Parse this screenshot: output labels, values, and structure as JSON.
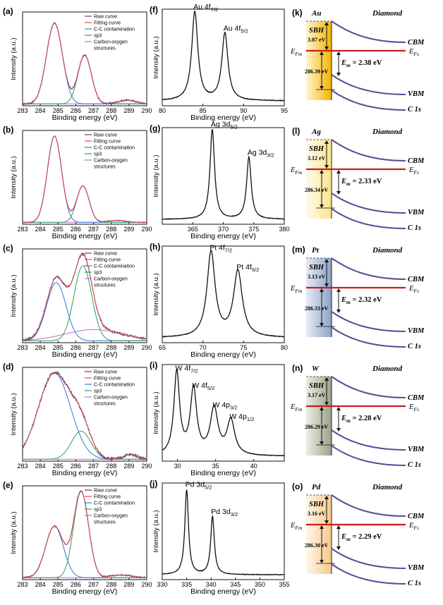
{
  "xps_c1s": [
    {
      "label": "(a)",
      "legend": [
        "Raw curve",
        "Fitting curve",
        "C-C contamination",
        "sp3",
        "Carbon-oxygen",
        "structures"
      ],
      "xlabel": "Binding energy (eV)",
      "ylabel": "Intensity (a.u.)",
      "ticks": [
        "283",
        "284",
        "285",
        "286",
        "287",
        "288",
        "289",
        "290"
      ],
      "peaks": [
        {
          "name": "C-C contamination",
          "center": 284.8,
          "height": 0.86,
          "width": 0.45
        },
        {
          "name": "sp3",
          "center": 286.5,
          "height": 0.52,
          "width": 0.38
        }
      ],
      "bg": [
        {
          "center": 288.9,
          "height": 0.04,
          "width": 0.5
        }
      ],
      "raw_scale": 1.0,
      "noise": 0.6
    },
    {
      "label": "(b)",
      "legend": [
        "Raw curve",
        "Fitting curve",
        "C-C contamination",
        "sp3",
        "Carbon-oxygen",
        "structures"
      ],
      "xlabel": "Binding energy (eV)",
      "ylabel": "Intensity (a.u.)",
      "ticks": [
        "283",
        "284",
        "285",
        "286",
        "287",
        "288",
        "289",
        "290"
      ],
      "peaks": [
        {
          "name": "C-C contamination",
          "center": 284.8,
          "height": 0.92,
          "width": 0.4
        },
        {
          "name": "sp3",
          "center": 286.4,
          "height": 0.39,
          "width": 0.35
        }
      ],
      "bg": [
        {
          "center": 288.3,
          "height": 0.02,
          "width": 0.5
        }
      ],
      "raw_scale": 1.0,
      "noise": 0.3
    },
    {
      "label": "(c)",
      "legend": [
        "Raw curve",
        "Fitting curve",
        "C-C contamination",
        "sp3",
        "Carbon-oxygen",
        "structures"
      ],
      "xlabel": "Binding energy (eV)",
      "ylabel": "Intensity (a.u.)",
      "ticks": [
        "283",
        "284",
        "285",
        "286",
        "287",
        "288",
        "289",
        "290"
      ],
      "peaks": [
        {
          "name": "C-C contamination",
          "center": 284.9,
          "height": 0.62,
          "width": 0.55
        },
        {
          "name": "sp3",
          "center": 286.4,
          "height": 0.8,
          "width": 0.5
        }
      ],
      "bg": [
        {
          "center": 287.0,
          "height": 0.12,
          "width": 1.6
        }
      ],
      "raw_scale": 1.0,
      "noise": 0.8
    },
    {
      "label": "(d)",
      "legend": [
        "Raw curve",
        "Fitting curve",
        "C-C contamination",
        "sp3",
        "Carbon-oxygen",
        "structures"
      ],
      "xlabel": "Binding energy (eV)",
      "ylabel": "Intensity (a.u.)",
      "ticks": [
        "283",
        "284",
        "285",
        "286",
        "287",
        "288",
        "289",
        "290"
      ],
      "peaks": [
        {
          "name": "C-C contamination",
          "center": 284.8,
          "height": 0.92,
          "width": 0.9
        },
        {
          "name": "sp3",
          "center": 286.3,
          "height": 0.3,
          "width": 0.55
        }
      ],
      "bg": [
        {
          "center": 289.1,
          "height": 0.05,
          "width": 0.4
        }
      ],
      "raw_scale": 1.0,
      "noise": 1.0
    },
    {
      "label": "(e)",
      "legend": [
        "Raw curve",
        "Fitting curve",
        "C-C contamination",
        "sp3",
        "Carbon-oxygen",
        "structures"
      ],
      "xlabel": "Binding energy (eV)",
      "ylabel": "Intensity (a.u.)",
      "ticks": [
        "283",
        "284",
        "285",
        "286",
        "287",
        "288",
        "289",
        "290"
      ],
      "peaks": [
        {
          "name": "C-C contamination",
          "center": 284.8,
          "height": 0.55,
          "width": 0.5
        },
        {
          "name": "sp3",
          "center": 286.3,
          "height": 0.92,
          "width": 0.42
        }
      ],
      "bg": [
        {
          "center": 288.6,
          "height": 0.03,
          "width": 0.6
        }
      ],
      "raw_scale": 1.0,
      "noise": 0.5
    }
  ],
  "metal_spectra": [
    {
      "label": "(f)",
      "xlabel": "Binding energy (eV)",
      "ylabel": "Intensity (a.u.)",
      "xlim": [
        80,
        95
      ],
      "ticks": [
        "80",
        "85",
        "90",
        "95"
      ],
      "peaks": [
        {
          "center": 84.0,
          "height": 0.92,
          "width": 0.45,
          "label_main": "Au 4f",
          "label_sub": "7/2"
        },
        {
          "center": 87.7,
          "height": 0.7,
          "width": 0.45,
          "label_main": "Au 4f",
          "label_sub": "5/2"
        }
      ]
    },
    {
      "label": "(g)",
      "xlabel": "Binding energy (eV)",
      "ylabel": "Intensity (a.u.)",
      "xlim": [
        360,
        380
      ],
      "ticks": [
        "365",
        "370",
        "375",
        "380"
      ],
      "peaks": [
        {
          "center": 368.2,
          "height": 0.93,
          "width": 0.45,
          "label_main": "Ag 3d",
          "label_sub": "5/2"
        },
        {
          "center": 374.2,
          "height": 0.64,
          "width": 0.45,
          "label_main": "Ag 3d",
          "label_sub": "3/2"
        }
      ]
    },
    {
      "label": "(h)",
      "xlabel": "Binding energy (eV)",
      "ylabel": "Intensity (a.u.)",
      "xlim": [
        65,
        80
      ],
      "ticks": [
        "65",
        "70",
        "75",
        "80"
      ],
      "peaks": [
        {
          "center": 71.0,
          "height": 0.88,
          "width": 0.6,
          "label_main": "Pt 4f",
          "label_sub": "7/2"
        },
        {
          "center": 74.3,
          "height": 0.68,
          "width": 0.65,
          "label_main": "Pt 4f",
          "label_sub": "5/2"
        }
      ]
    },
    {
      "label": "(i)",
      "xlabel": "Binding energy (eV)",
      "ylabel": "Intensity (a.u.)",
      "xlim": [
        28,
        44
      ],
      "ticks": [
        "30",
        "35",
        "40"
      ],
      "peaks": [
        {
          "center": 29.9,
          "height": 0.86,
          "width": 0.45,
          "label_main": "W 4f",
          "label_sub": "7/2"
        },
        {
          "center": 32.1,
          "height": 0.68,
          "width": 0.5,
          "label_main": "W 4f",
          "label_sub": "5/2"
        },
        {
          "center": 34.8,
          "height": 0.48,
          "width": 0.6,
          "label_main": "W 4p",
          "label_sub": "3/2"
        },
        {
          "center": 37.0,
          "height": 0.36,
          "width": 0.6,
          "label_main": "W 4p",
          "label_sub": "1/2"
        }
      ]
    },
    {
      "label": "(j)",
      "xlabel": "Binding energy (eV)",
      "ylabel": "Intensity (a.u.)",
      "xlim": [
        330,
        355
      ],
      "ticks": [
        "330",
        "335",
        "340",
        "345",
        "350",
        "355"
      ],
      "peaks": [
        {
          "center": 335.0,
          "height": 0.88,
          "width": 0.45,
          "label_main": "Pd 3d",
          "label_sub": "5/2"
        },
        {
          "center": 340.3,
          "height": 0.6,
          "width": 0.45,
          "label_main": "Pd 3d",
          "label_sub": "3/2"
        }
      ]
    }
  ],
  "band_diagrams": [
    {
      "label": "(k)",
      "metal": "Au",
      "right_title": "Diamond",
      "sbh_label": "SBH",
      "sbh_value": "3.07 eV",
      "gap_value": "286.39 eV",
      "em_value": "= 2.38 eV",
      "cbm": "CBM",
      "vbm": "VBM",
      "c1s": "C 1s",
      "efm": "E",
      "efm_sub": "Fm",
      "efs": "E",
      "efs_sub": "Fs",
      "em": "E",
      "em_sub": "m",
      "grad": [
        "#f4b400",
        "#fff4cf"
      ]
    },
    {
      "label": "(l)",
      "metal": "Ag",
      "right_title": "Diamond",
      "sbh_label": "SBH",
      "sbh_value": "3.12 eV",
      "gap_value": "286.34 eV",
      "em_value": "= 2.33 eV",
      "cbm": "CBM",
      "vbm": "VBM",
      "c1s": "C 1s",
      "efm": "E",
      "efm_sub": "Fm",
      "efs": "E",
      "efs_sub": "Fs",
      "em": "E",
      "em_sub": "m",
      "grad": [
        "#fbe48a",
        "#fffaf0"
      ]
    },
    {
      "label": "(m)",
      "metal": "Pt",
      "right_title": "Diamond",
      "sbh_label": "SBH",
      "sbh_value": "3.13 eV",
      "gap_value": "286.33 eV",
      "em_value": "= 2.32 eV",
      "cbm": "CBM",
      "vbm": "VBM",
      "c1s": "C 1s",
      "efm": "E",
      "efm_sub": "Fm",
      "efs": "E",
      "efs_sub": "Fs",
      "em": "E",
      "em_sub": "m",
      "grad": [
        "#8fa3c8",
        "#e6ecf6"
      ]
    },
    {
      "label": "(n)",
      "metal": "W",
      "right_title": "Diamond",
      "sbh_label": "SBH",
      "sbh_value": "3.17 eV",
      "gap_value": "286.29 eV",
      "em_value": "= 2.28 eV",
      "cbm": "CBM",
      "vbm": "VBM",
      "c1s": "C 1s",
      "efm": "E",
      "efm_sub": "Fm",
      "efs": "E",
      "efs_sub": "Fs",
      "em": "E",
      "em_sub": "m",
      "grad": [
        "#9aa38a",
        "#eceee4"
      ]
    },
    {
      "label": "(o)",
      "metal": "Pd",
      "right_title": "Diamond",
      "sbh_label": "SBH",
      "sbh_value": "3.16 eV",
      "gap_value": "286.30 eV",
      "em_value": "= 2.29 eV",
      "cbm": "CBM",
      "vbm": "VBM",
      "c1s": "C 1s",
      "efm": "E",
      "efm_sub": "Fm",
      "efs": "E",
      "efs_sub": "Fs",
      "em": "E",
      "em_sub": "m",
      "grad": [
        "#f6c98a",
        "#fff6ea"
      ]
    }
  ],
  "colors": {
    "raw": "#5b3f72",
    "fit": "#e8464a",
    "cc": "#2b7bd6",
    "sp3": "#2e9e5c",
    "co": "#c46ad0",
    "axis": "#111111",
    "fermi": "#c81e1e",
    "band": "#5a4e96"
  },
  "chart_data": [
    {
      "panel": "(a)",
      "type": "line",
      "xlabel": "Binding energy (eV)",
      "ylabel": "Intensity (a.u.)",
      "xlim": [
        283,
        290
      ],
      "series": [
        {
          "name": "C-C contamination",
          "peak_center_eV": 284.8
        },
        {
          "name": "sp3",
          "peak_center_eV": 286.5
        }
      ]
    },
    {
      "panel": "(b)",
      "type": "line",
      "xlabel": "Binding energy (eV)",
      "ylabel": "Intensity (a.u.)",
      "xlim": [
        283,
        290
      ],
      "series": [
        {
          "name": "C-C contamination",
          "peak_center_eV": 284.8
        },
        {
          "name": "sp3",
          "peak_center_eV": 286.4
        }
      ]
    },
    {
      "panel": "(c)",
      "type": "line",
      "xlabel": "Binding energy (eV)",
      "ylabel": "Intensity (a.u.)",
      "xlim": [
        283,
        290
      ],
      "series": [
        {
          "name": "C-C contamination",
          "peak_center_eV": 284.9
        },
        {
          "name": "sp3",
          "peak_center_eV": 286.4
        }
      ]
    },
    {
      "panel": "(d)",
      "type": "line",
      "xlabel": "Binding energy (eV)",
      "ylabel": "Intensity (a.u.)",
      "xlim": [
        283,
        290
      ],
      "series": [
        {
          "name": "C-C contamination",
          "peak_center_eV": 284.8
        },
        {
          "name": "sp3",
          "peak_center_eV": 286.3
        }
      ]
    },
    {
      "panel": "(e)",
      "type": "line",
      "xlabel": "Binding energy (eV)",
      "ylabel": "Intensity (a.u.)",
      "xlim": [
        283,
        290
      ],
      "series": [
        {
          "name": "C-C contamination",
          "peak_center_eV": 284.8
        },
        {
          "name": "sp3",
          "peak_center_eV": 286.3
        }
      ]
    },
    {
      "panel": "(f)",
      "type": "line",
      "xlim": [
        80,
        95
      ],
      "peaks": {
        "Au 4f7/2": 84.0,
        "Au 4f5/2": 87.7
      }
    },
    {
      "panel": "(g)",
      "type": "line",
      "xlim": [
        360,
        380
      ],
      "peaks": {
        "Ag 3d5/2": 368.2,
        "Ag 3d3/2": 374.2
      }
    },
    {
      "panel": "(h)",
      "type": "line",
      "xlim": [
        65,
        80
      ],
      "peaks": {
        "Pt 4f7/2": 71.0,
        "Pt 4f5/2": 74.3
      }
    },
    {
      "panel": "(i)",
      "type": "line",
      "xlim": [
        28,
        44
      ],
      "peaks": {
        "W 4f7/2": 29.9,
        "W 4f5/2": 32.1,
        "W 4p3/2": 34.8,
        "W 4p1/2": 37.0
      }
    },
    {
      "panel": "(j)",
      "type": "line",
      "xlim": [
        330,
        355
      ],
      "peaks": {
        "Pd 3d5/2": 335.0,
        "Pd 3d3/2": 340.3
      }
    }
  ]
}
